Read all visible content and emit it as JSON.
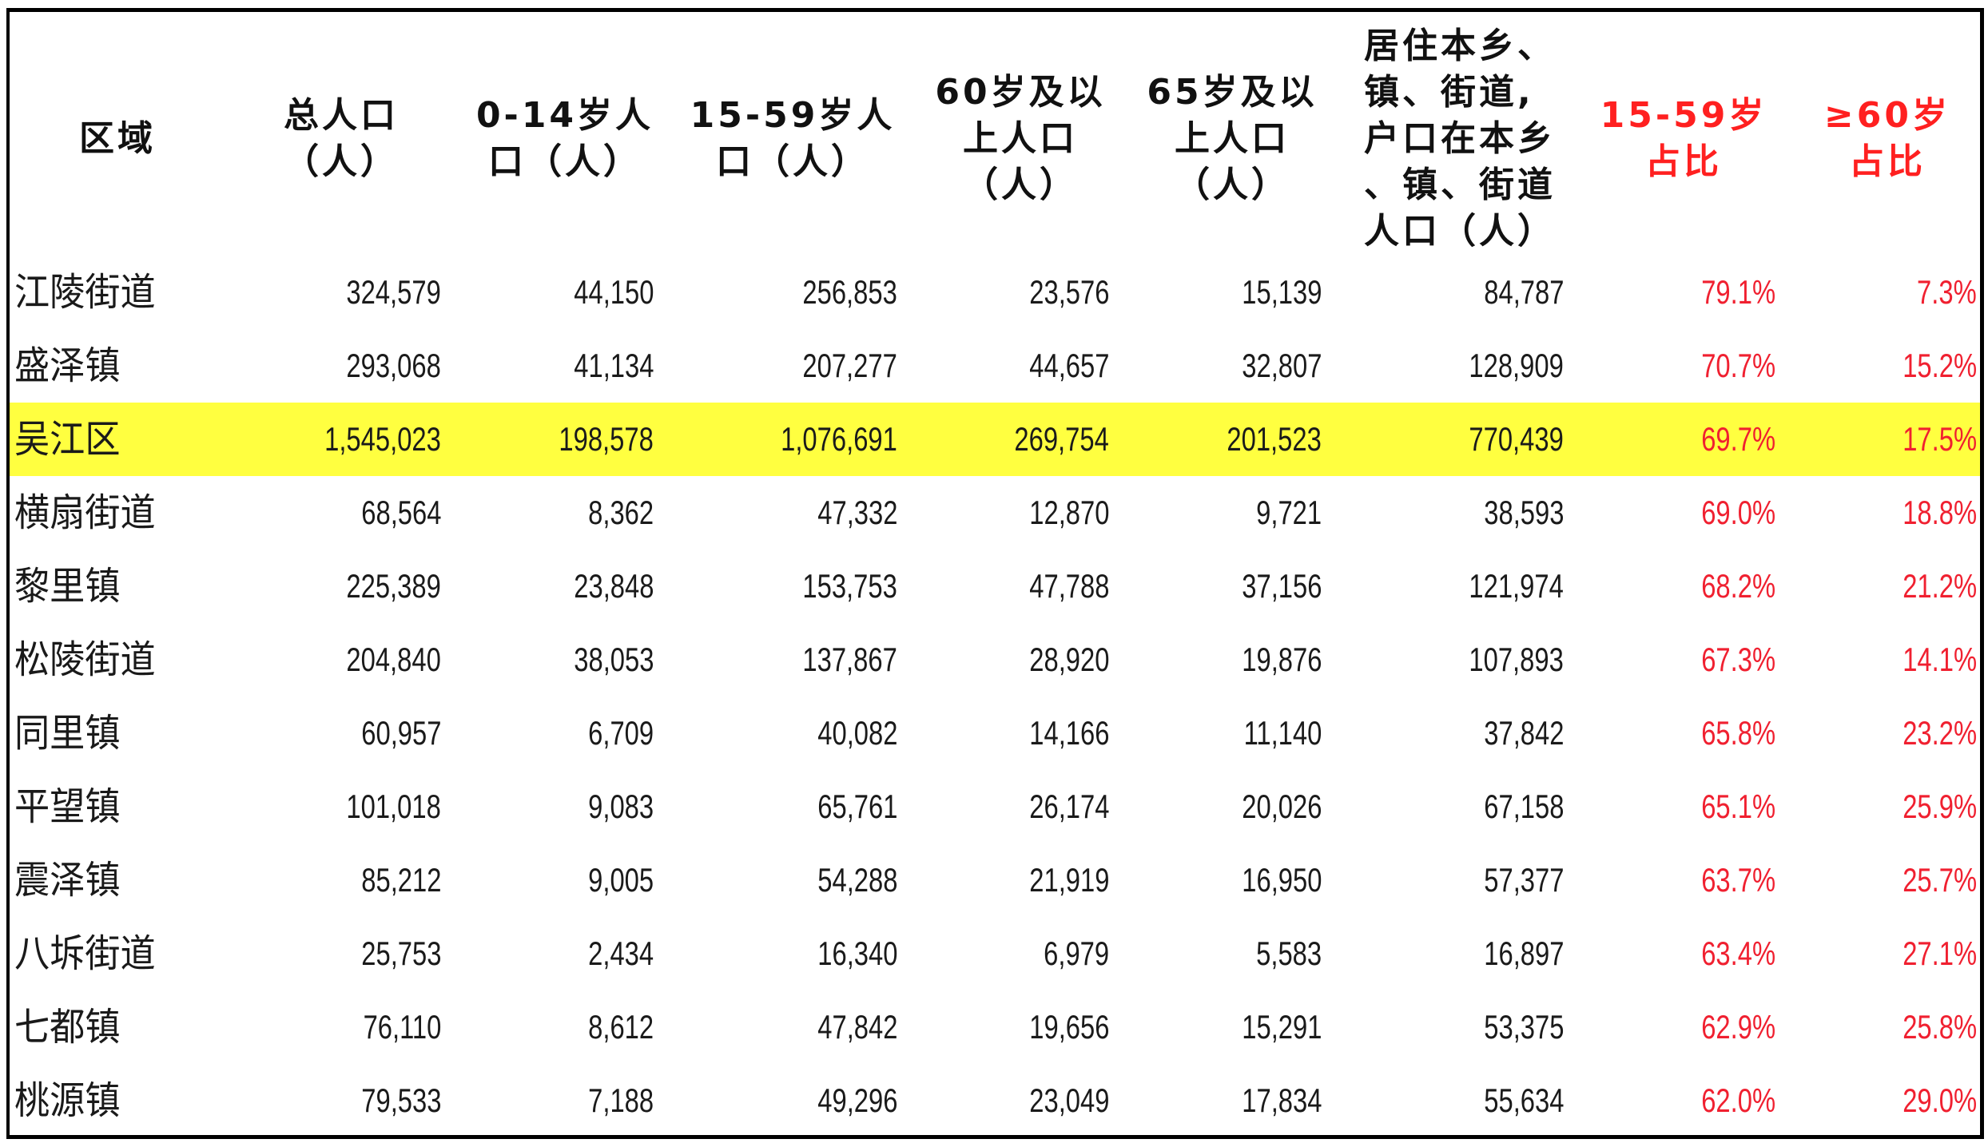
{
  "table": {
    "headers": [
      {
        "label": "区域",
        "color": "#111111"
      },
      {
        "label": "总人口\n（人）",
        "color": "#111111"
      },
      {
        "label": "0-14岁人\n口（人）",
        "color": "#111111"
      },
      {
        "label": "15-59岁人\n口（人）",
        "color": "#111111"
      },
      {
        "label": "60岁及以\n上人口\n（人）",
        "color": "#111111"
      },
      {
        "label": "65岁及以\n上人口\n（人）",
        "color": "#111111"
      },
      {
        "label": "居住本乡、\n镇、街道,\n户口在本乡\n、镇、街道\n人口（人）",
        "color": "#111111"
      },
      {
        "label": "15-59岁\n占比",
        "color": "#ff2020"
      },
      {
        "label": "≥60岁\n占比",
        "color": "#ff2020"
      }
    ],
    "highlight_color": "#ffff40",
    "percent_color": "#f02030",
    "rows": [
      {
        "name": "江陵街道",
        "total": "324,579",
        "age0_14": "44,150",
        "age15_59": "256,853",
        "age60p": "23,576",
        "age65p": "15,139",
        "resident_local": "84,787",
        "pct15_59": "79.1%",
        "pct60p": "7.3%",
        "highlight": false
      },
      {
        "name": "盛泽镇",
        "total": "293,068",
        "age0_14": "41,134",
        "age15_59": "207,277",
        "age60p": "44,657",
        "age65p": "32,807",
        "resident_local": "128,909",
        "pct15_59": "70.7%",
        "pct60p": "15.2%",
        "highlight": false
      },
      {
        "name": "吴江区",
        "total": "1,545,023",
        "age0_14": "198,578",
        "age15_59": "1,076,691",
        "age60p": "269,754",
        "age65p": "201,523",
        "resident_local": "770,439",
        "pct15_59": "69.7%",
        "pct60p": "17.5%",
        "highlight": true
      },
      {
        "name": "横扇街道",
        "total": "68,564",
        "age0_14": "8,362",
        "age15_59": "47,332",
        "age60p": "12,870",
        "age65p": "9,721",
        "resident_local": "38,593",
        "pct15_59": "69.0%",
        "pct60p": "18.8%",
        "highlight": false
      },
      {
        "name": "黎里镇",
        "total": "225,389",
        "age0_14": "23,848",
        "age15_59": "153,753",
        "age60p": "47,788",
        "age65p": "37,156",
        "resident_local": "121,974",
        "pct15_59": "68.2%",
        "pct60p": "21.2%",
        "highlight": false
      },
      {
        "name": "松陵街道",
        "total": "204,840",
        "age0_14": "38,053",
        "age15_59": "137,867",
        "age60p": "28,920",
        "age65p": "19,876",
        "resident_local": "107,893",
        "pct15_59": "67.3%",
        "pct60p": "14.1%",
        "highlight": false
      },
      {
        "name": "同里镇",
        "total": "60,957",
        "age0_14": "6,709",
        "age15_59": "40,082",
        "age60p": "14,166",
        "age65p": "11,140",
        "resident_local": "37,842",
        "pct15_59": "65.8%",
        "pct60p": "23.2%",
        "highlight": false
      },
      {
        "name": "平望镇",
        "total": "101,018",
        "age0_14": "9,083",
        "age15_59": "65,761",
        "age60p": "26,174",
        "age65p": "20,026",
        "resident_local": "67,158",
        "pct15_59": "65.1%",
        "pct60p": "25.9%",
        "highlight": false
      },
      {
        "name": "震泽镇",
        "total": "85,212",
        "age0_14": "9,005",
        "age15_59": "54,288",
        "age60p": "21,919",
        "age65p": "16,950",
        "resident_local": "57,377",
        "pct15_59": "63.7%",
        "pct60p": "25.7%",
        "highlight": false
      },
      {
        "name": "八坼街道",
        "total": "25,753",
        "age0_14": "2,434",
        "age15_59": "16,340",
        "age60p": "6,979",
        "age65p": "5,583",
        "resident_local": "16,897",
        "pct15_59": "63.4%",
        "pct60p": "27.1%",
        "highlight": false
      },
      {
        "name": "七都镇",
        "total": "76,110",
        "age0_14": "8,612",
        "age15_59": "47,842",
        "age60p": "19,656",
        "age65p": "15,291",
        "resident_local": "53,375",
        "pct15_59": "62.9%",
        "pct60p": "25.8%",
        "highlight": false
      },
      {
        "name": "桃源镇",
        "total": "79,533",
        "age0_14": "7,188",
        "age15_59": "49,296",
        "age60p": "23,049",
        "age65p": "17,834",
        "resident_local": "55,634",
        "pct15_59": "62.0%",
        "pct60p": "29.0%",
        "highlight": false
      }
    ]
  }
}
